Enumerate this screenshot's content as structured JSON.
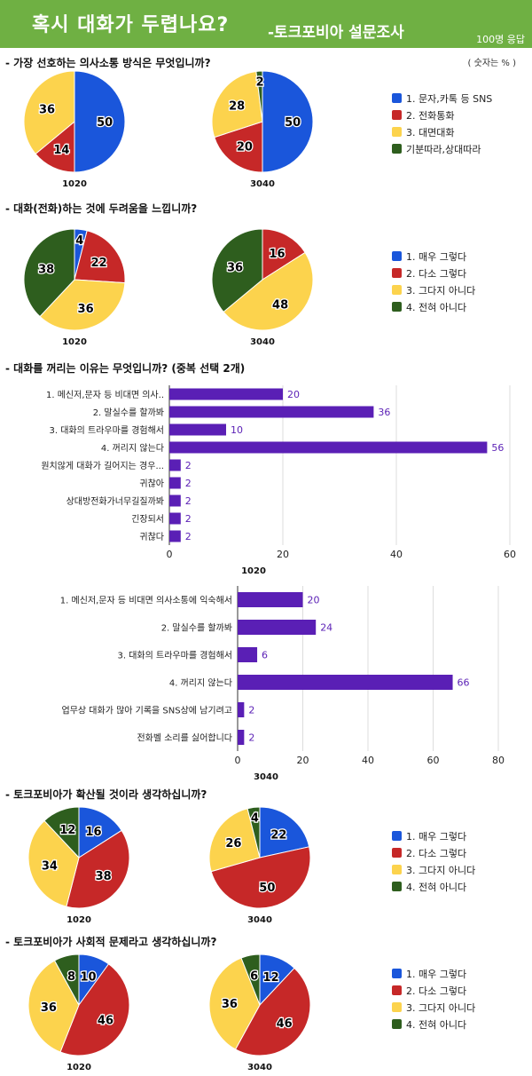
{
  "header": {
    "title": "혹시 대화가 두렵나요?",
    "subtitle": "-토크포비아 설문조사",
    "responses": "100명 응답"
  },
  "unit_note": "( 숫자는 % )",
  "colors": {
    "blue": "#1a56db",
    "red": "#c62828",
    "yellow": "#fcd34d",
    "green": "#2e5e1e",
    "bar": "#5a1fb5",
    "header": "#6fb043"
  },
  "chart_data": [
    {
      "type": "pie",
      "question": "- 가장 선호하는 의사소통 방식은 무엇입니까?",
      "legend": [
        "1. 문자,카톡 등 SNS",
        "2. 전화통화",
        "3. 대면대화",
        "기분따라,상대따라"
      ],
      "groups": [
        {
          "label": "1020",
          "values": [
            50,
            14,
            36,
            0
          ]
        },
        {
          "label": "3040",
          "values": [
            50,
            20,
            28,
            2
          ]
        }
      ]
    },
    {
      "type": "pie",
      "question": "- 대화(전화)하는 것에 두려움을 느낍니까?",
      "legend": [
        "1. 매우 그렇다",
        "2. 다소 그렇다",
        "3. 그다지 아니다",
        "4. 전혀 아니다"
      ],
      "groups": [
        {
          "label": "1020",
          "values": [
            4,
            22,
            36,
            38
          ]
        },
        {
          "label": "3040",
          "values": [
            0,
            16,
            48,
            36
          ]
        }
      ]
    },
    {
      "type": "bar",
      "question": "- 대화를 꺼리는 이유는 무엇입니까? (중복 선택 2개)",
      "label": "1020",
      "categories": [
        "1. 메신저,문자 등 비대면 의사..",
        "2. 말실수를 할까봐",
        "3. 대화의 트라우마를 경험해서",
        "4. 꺼리지 않는다",
        "원치않게 대화가 길어지는 경우...",
        "귀찮아",
        "상대방전화가너무길질까봐",
        "긴장되서",
        "귀찮다"
      ],
      "values": [
        20,
        36,
        10,
        56,
        2,
        2,
        2,
        2,
        2
      ],
      "xlim": [
        0,
        60
      ],
      "xticks": [
        0,
        20,
        40,
        60
      ]
    },
    {
      "type": "bar",
      "label": "3040",
      "categories": [
        "1. 메신저,문자 등 비대면 의사소통에 익숙해서",
        "2. 말실수를 할까봐",
        "3. 대화의 트라우마를 경험해서",
        "4. 꺼리지 않는다",
        "업무상 대화가 많아 기록을 SNS상에 남기려고",
        "전화벨 소리를 싫어합니다"
      ],
      "values": [
        20,
        24,
        6,
        66,
        2,
        2
      ],
      "xlim": [
        0,
        80
      ],
      "xticks": [
        0,
        20,
        40,
        60,
        80
      ]
    },
    {
      "type": "pie",
      "question": "- 토크포비아가 확산될 것이라 생각하십니까?",
      "legend": [
        "1. 매우 그렇다",
        "2. 다소 그렇다",
        "3. 그다지 아니다",
        "4. 전혀 아니다"
      ],
      "groups": [
        {
          "label": "1020",
          "values": [
            16,
            38,
            34,
            12
          ]
        },
        {
          "label": "3040",
          "values": [
            22,
            50,
            26,
            4
          ]
        }
      ]
    },
    {
      "type": "pie",
      "question": "- 토크포비아가 사회적 문제라고 생각하십니까?",
      "legend": [
        "1. 매우 그렇다",
        "2. 다소 그렇다",
        "3. 그다지 아니다",
        "4. 전혀 아니다"
      ],
      "groups": [
        {
          "label": "1020",
          "values": [
            10,
            46,
            36,
            8
          ]
        },
        {
          "label": "3040",
          "values": [
            12,
            46,
            36,
            6
          ]
        }
      ]
    }
  ]
}
